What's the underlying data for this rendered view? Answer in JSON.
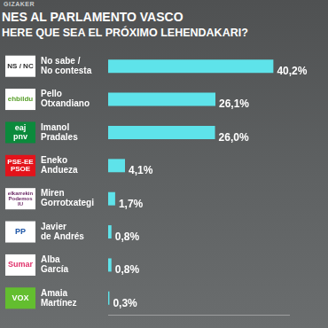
{
  "chart_data": {
    "type": "bar",
    "orientation": "horizontal",
    "title": "NES AL PARLAMENTO VASCO",
    "subtitle": "HERE QUE SEA EL PRÓXIMO LEHENDAKARI?",
    "annotations": [
      "GIZAKER"
    ],
    "categories": [
      "No sabe / No contesta",
      "Pello Otxandiano",
      "Imanol Pradales",
      "Eneko Andueza",
      "Miren Gorrotxategi",
      "Javier de Andrés",
      "Alba García",
      "Amaia Martínez"
    ],
    "party_labels": [
      "NS / NC",
      "ehbildu",
      "eaj pnv",
      "PSE-EE PSOE",
      "elkarrekin Podemos IU",
      "PP",
      "Sumar",
      "VOX"
    ],
    "values": [
      40.2,
      26.1,
      26.0,
      4.1,
      1.7,
      0.8,
      0.8,
      0.3
    ],
    "value_labels": [
      "40,2%",
      "26,1%",
      "26,0%",
      "4,1%",
      "1,7%",
      "0,8%",
      "0,8%",
      "0,3%"
    ],
    "color": "#5ee3ea",
    "xlim": [
      0,
      44
    ],
    "data_labels": true,
    "tick_labels": "y",
    "grid": false
  }
}
